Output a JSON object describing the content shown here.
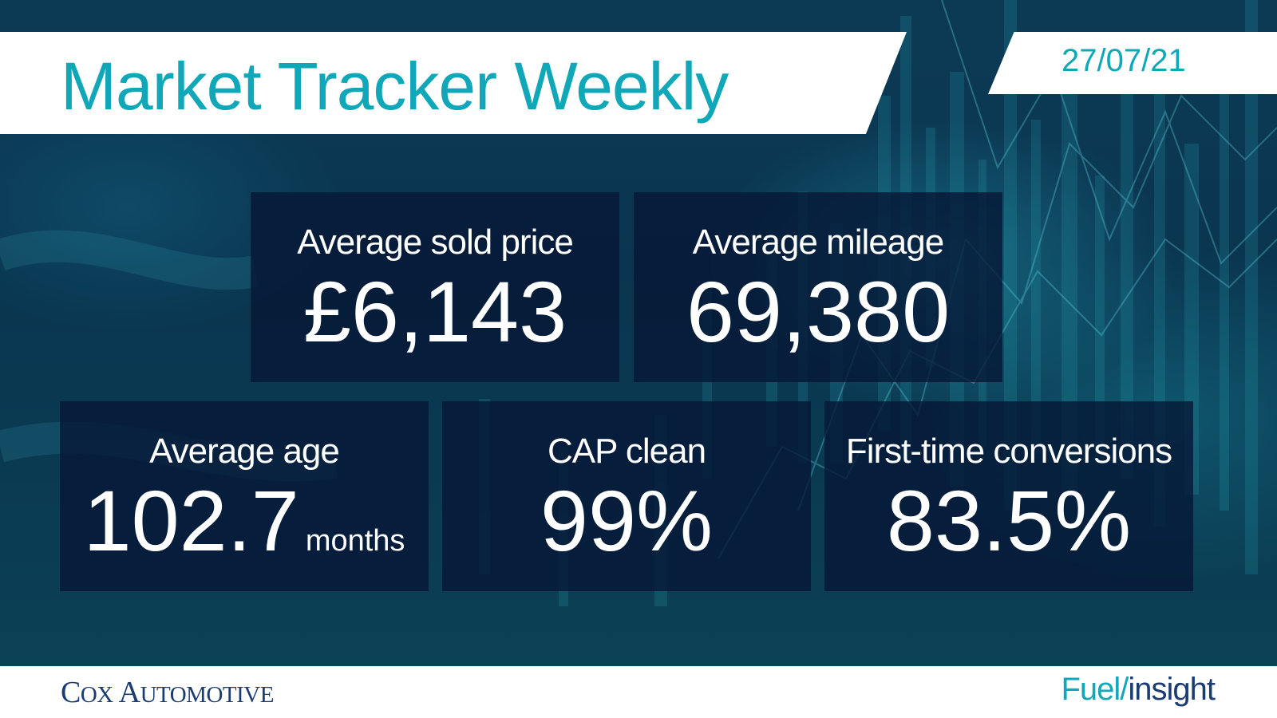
{
  "header": {
    "title": "Market Tracker Weekly",
    "date": "27/07/21"
  },
  "metrics": {
    "avg_sold_price": {
      "label": "Average sold price",
      "value": "£6,143"
    },
    "avg_mileage": {
      "label": "Average mileage",
      "value": "69,380"
    },
    "avg_age": {
      "label": "Average age",
      "value": "102.7",
      "unit": "months"
    },
    "cap_clean": {
      "label": "CAP clean",
      "value": "99%"
    },
    "first_time_conversions": {
      "label": "First-time conversions",
      "value": "83.5%"
    }
  },
  "footer": {
    "cox_logo": {
      "c1": "C",
      "c2": "OX",
      "a1": "A",
      "a2": "UTOMOTIVE"
    },
    "fuel_logo": {
      "part1": "Fuel/",
      "part2": "insight"
    }
  },
  "colors": {
    "accent_teal": "#10a8b8",
    "brand_navy": "#1b3c73",
    "tile_bg": "#051634",
    "background": "#0b3a52"
  },
  "background_image": "market chart bars and lines"
}
